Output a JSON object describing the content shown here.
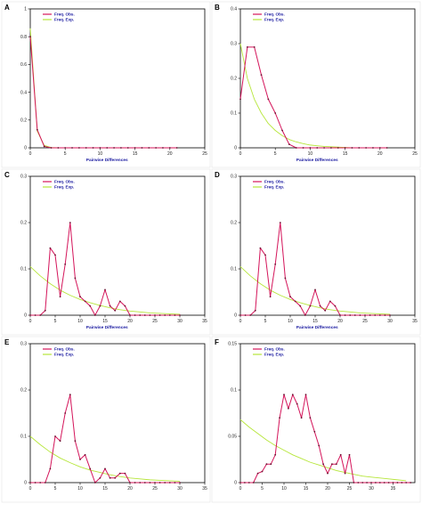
{
  "colors": {
    "observed": "#d4145a",
    "expected": "#b6e63a",
    "axis_label": "#1a1aa0"
  },
  "chart_data": [
    {
      "type": "line",
      "panel": "A",
      "xlabel": "Pairwise Differences",
      "ylabel": "",
      "xlim": [
        0,
        25
      ],
      "ylim": [
        0,
        1
      ],
      "xticks": [
        0,
        5,
        10,
        15,
        20,
        25
      ],
      "yticks": [
        0,
        0.2,
        0.4,
        0.6,
        0.8,
        1
      ],
      "ytick_labels": [
        "0",
        "0.2",
        "0.4",
        "0.6",
        "0.8",
        "1"
      ],
      "series": [
        {
          "name": "Freq. Obs.",
          "x": [
            0,
            1,
            2,
            3,
            4,
            5,
            6,
            7,
            8,
            9,
            10,
            11,
            12,
            13,
            14,
            15,
            16,
            17,
            18,
            19,
            20,
            21
          ],
          "y": [
            0.8,
            0.13,
            0.01,
            0,
            0,
            0,
            0,
            0,
            0,
            0,
            0,
            0,
            0,
            0,
            0,
            0,
            0,
            0,
            0,
            0,
            0,
            0
          ]
        },
        {
          "name": "Freq. Exp.",
          "x": [
            0,
            1,
            2,
            3,
            4,
            5,
            6,
            7,
            8,
            9,
            10,
            11,
            12,
            13,
            14,
            15,
            16,
            17,
            18,
            19,
            20,
            21
          ],
          "y": [
            0.86,
            0.12,
            0.017,
            0.002,
            0,
            0,
            0,
            0,
            0,
            0,
            0,
            0,
            0,
            0,
            0,
            0,
            0,
            0,
            0,
            0,
            0,
            0
          ]
        }
      ]
    },
    {
      "type": "line",
      "panel": "B",
      "xlabel": "Pairwise Differences",
      "ylabel": "",
      "xlim": [
        0,
        25
      ],
      "ylim": [
        0,
        0.4
      ],
      "xticks": [
        0,
        5,
        10,
        15,
        20,
        25
      ],
      "yticks": [
        0,
        0.1,
        0.2,
        0.3,
        0.4
      ],
      "ytick_labels": [
        "0",
        "0.1",
        "0.2",
        "0.3",
        "0.4"
      ],
      "series": [
        {
          "name": "Freq. Obs.",
          "x": [
            0,
            1,
            2,
            3,
            4,
            5,
            6,
            7,
            8,
            9,
            10,
            11,
            12,
            13,
            14,
            15,
            16,
            17,
            18,
            19,
            20,
            21
          ],
          "y": [
            0.14,
            0.29,
            0.29,
            0.21,
            0.14,
            0.1,
            0.05,
            0.01,
            0,
            0,
            0,
            0,
            0,
            0,
            0,
            0,
            0,
            0,
            0,
            0,
            0,
            0
          ]
        },
        {
          "name": "Freq. Exp.",
          "x": [
            0,
            1,
            2,
            3,
            4,
            5,
            6,
            7,
            8,
            9,
            10,
            11,
            12,
            13,
            14,
            15,
            16,
            17,
            18,
            19,
            20,
            21
          ],
          "y": [
            0.3,
            0.2,
            0.14,
            0.1,
            0.07,
            0.05,
            0.035,
            0.024,
            0.017,
            0.012,
            0.008,
            0.006,
            0.004,
            0.003,
            0.002,
            0.001,
            0,
            0,
            0,
            0,
            0,
            0
          ]
        }
      ]
    },
    {
      "type": "line",
      "panel": "C",
      "xlabel": "Pairwise Differences",
      "ylabel": "",
      "xlim": [
        0,
        35
      ],
      "ylim": [
        0,
        0.3
      ],
      "xticks": [
        0,
        5,
        10,
        15,
        20,
        25,
        30,
        35
      ],
      "yticks": [
        0,
        0.1,
        0.2,
        0.3
      ],
      "ytick_labels": [
        "0",
        "0.1",
        "0.2",
        "0.3"
      ],
      "series": [
        {
          "name": "Freq. Obs.",
          "x": [
            0,
            1,
            2,
            3,
            4,
            5,
            6,
            7,
            8,
            9,
            10,
            11,
            12,
            13,
            14,
            15,
            16,
            17,
            18,
            19,
            20,
            21,
            22,
            23,
            24,
            25,
            26,
            27,
            28,
            29,
            30
          ],
          "y": [
            0,
            0,
            0,
            0.01,
            0.145,
            0.13,
            0.04,
            0.11,
            0.2,
            0.08,
            0.04,
            0.03,
            0.02,
            0,
            0.02,
            0.055,
            0.02,
            0.01,
            0.03,
            0.02,
            0,
            0,
            0,
            0,
            0,
            0,
            0,
            0,
            0,
            0,
            0
          ]
        },
        {
          "name": "Freq. Exp.",
          "x": [
            0,
            2,
            4,
            6,
            8,
            10,
            12,
            14,
            16,
            18,
            20,
            22,
            24,
            26,
            28,
            30
          ],
          "y": [
            0.105,
            0.085,
            0.068,
            0.054,
            0.043,
            0.034,
            0.027,
            0.021,
            0.016,
            0.012,
            0.009,
            0.007,
            0.005,
            0.004,
            0.003,
            0.002
          ]
        }
      ]
    },
    {
      "type": "line",
      "panel": "D",
      "xlabel": "Pairwise Differences",
      "ylabel": "",
      "xlim": [
        0,
        35
      ],
      "ylim": [
        0,
        0.3
      ],
      "xticks": [
        0,
        5,
        10,
        15,
        20,
        25,
        30,
        35
      ],
      "yticks": [
        0,
        0.1,
        0.2,
        0.3
      ],
      "ytick_labels": [
        "0",
        "0.1",
        "0.2",
        "0.3"
      ],
      "series": [
        {
          "name": "Freq. Obs.",
          "x": [
            0,
            1,
            2,
            3,
            4,
            5,
            6,
            7,
            8,
            9,
            10,
            11,
            12,
            13,
            14,
            15,
            16,
            17,
            18,
            19,
            20,
            21,
            22,
            23,
            24,
            25,
            26,
            27,
            28,
            29,
            30
          ],
          "y": [
            0,
            0,
            0,
            0.01,
            0.145,
            0.13,
            0.04,
            0.11,
            0.2,
            0.08,
            0.04,
            0.03,
            0.02,
            0,
            0.02,
            0.055,
            0.02,
            0.01,
            0.03,
            0.02,
            0,
            0,
            0,
            0,
            0,
            0,
            0,
            0,
            0,
            0,
            0
          ]
        },
        {
          "name": "Freq. Exp.",
          "x": [
            0,
            2,
            4,
            6,
            8,
            10,
            12,
            14,
            16,
            18,
            20,
            22,
            24,
            26,
            28,
            30
          ],
          "y": [
            0.105,
            0.085,
            0.068,
            0.054,
            0.043,
            0.034,
            0.027,
            0.021,
            0.016,
            0.012,
            0.009,
            0.007,
            0.005,
            0.004,
            0.003,
            0.002
          ]
        }
      ]
    },
    {
      "type": "line",
      "panel": "E",
      "xlabel": "",
      "ylabel": "",
      "xlim": [
        0,
        35
      ],
      "ylim": [
        0,
        0.3
      ],
      "xticks": [
        0,
        5,
        10,
        15,
        20,
        25,
        30,
        35
      ],
      "yticks": [
        0,
        0.1,
        0.2,
        0.3
      ],
      "ytick_labels": [
        "0",
        "0.1",
        "0.2",
        "0.3"
      ],
      "series": [
        {
          "name": "Freq. Obs.",
          "x": [
            0,
            1,
            2,
            3,
            4,
            5,
            6,
            7,
            8,
            9,
            10,
            11,
            12,
            13,
            14,
            15,
            16,
            17,
            18,
            19,
            20,
            21,
            22,
            23,
            24,
            25,
            26,
            27,
            28,
            29,
            30
          ],
          "y": [
            0,
            0,
            0,
            0,
            0.03,
            0.1,
            0.09,
            0.15,
            0.19,
            0.09,
            0.05,
            0.06,
            0.03,
            0,
            0.01,
            0.03,
            0.01,
            0.01,
            0.02,
            0.02,
            0,
            0,
            0,
            0,
            0,
            0,
            0,
            0,
            0,
            0,
            0
          ]
        },
        {
          "name": "Freq. Exp.",
          "x": [
            0,
            2,
            4,
            6,
            8,
            10,
            12,
            14,
            16,
            18,
            20,
            22,
            24,
            26,
            28,
            30
          ],
          "y": [
            0.1,
            0.082,
            0.066,
            0.053,
            0.043,
            0.034,
            0.027,
            0.022,
            0.017,
            0.013,
            0.01,
            0.008,
            0.006,
            0.005,
            0.004,
            0.003
          ]
        }
      ]
    },
    {
      "type": "line",
      "panel": "F",
      "xlabel": "",
      "ylabel": "",
      "xlim": [
        0,
        40
      ],
      "ylim": [
        0,
        0.15
      ],
      "xticks": [
        0,
        5,
        10,
        15,
        20,
        25,
        30,
        35
      ],
      "yticks": [
        0,
        0.05,
        0.1,
        0.15
      ],
      "ytick_labels": [
        "0",
        "0.05",
        "0.1",
        "0.15"
      ],
      "series": [
        {
          "name": "Freq. Obs.",
          "x": [
            0,
            1,
            2,
            3,
            4,
            5,
            6,
            7,
            8,
            9,
            10,
            11,
            12,
            13,
            14,
            15,
            16,
            17,
            18,
            19,
            20,
            21,
            22,
            23,
            24,
            25,
            26,
            27,
            28,
            29,
            30,
            31,
            32,
            33,
            34,
            35,
            36,
            37,
            38,
            39
          ],
          "y": [
            0,
            0,
            0,
            0,
            0.01,
            0.012,
            0.02,
            0.02,
            0.03,
            0.07,
            0.095,
            0.08,
            0.095,
            0.085,
            0.07,
            0.095,
            0.07,
            0.055,
            0.04,
            0.02,
            0.01,
            0.02,
            0.02,
            0.03,
            0.01,
            0.03,
            0,
            0,
            0,
            0,
            0,
            0,
            0,
            0,
            0,
            0,
            0,
            0,
            0,
            0
          ]
        },
        {
          "name": "Freq. Exp.",
          "x": [
            0,
            2,
            4,
            6,
            8,
            10,
            12,
            14,
            16,
            18,
            20,
            22,
            24,
            26,
            28,
            30,
            32,
            34,
            36,
            38
          ],
          "y": [
            0.068,
            0.06,
            0.053,
            0.046,
            0.04,
            0.035,
            0.03,
            0.026,
            0.022,
            0.019,
            0.016,
            0.013,
            0.011,
            0.009,
            0.007,
            0.006,
            0.005,
            0.004,
            0.003,
            0.002
          ]
        }
      ]
    }
  ]
}
